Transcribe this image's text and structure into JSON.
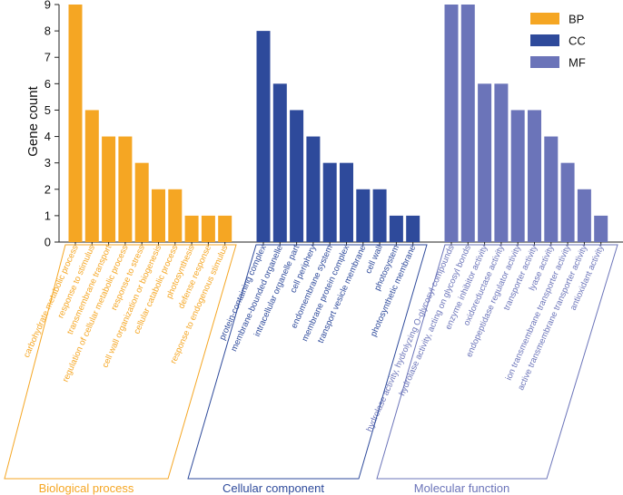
{
  "chart_data": {
    "type": "bar",
    "ylabel": "Gene count",
    "ylim": [
      0,
      9
    ],
    "yticks": [
      "0",
      "1",
      "2",
      "3",
      "4",
      "5",
      "6",
      "7",
      "8",
      "9"
    ],
    "legend": {
      "placement": "top-right",
      "entries": [
        {
          "name": "BP",
          "color": "#F5A623"
        },
        {
          "name": "CC",
          "color": "#2E4A9B"
        },
        {
          "name": "MF",
          "color": "#6B74B9"
        }
      ]
    },
    "groups": [
      {
        "name": "BP",
        "label": "Biological process",
        "color": "#F5A623",
        "categories": [
          "carbohydrate metabolic process",
          "response to stimulus",
          "transmembrane transport",
          "regulation of cellular metabolic process",
          "response to stress",
          "cell wall organization or biogenesis",
          "cellular catabolic process",
          "photosynthesis",
          "defense response",
          "response to endogenous stimulus"
        ],
        "values": [
          9,
          5,
          4,
          4,
          3,
          2,
          2,
          1,
          1,
          1
        ]
      },
      {
        "name": "CC",
        "label": "Cellular component",
        "color": "#2E4A9B",
        "categories": [
          "protein-containing complex",
          "membrane-bounded organelle",
          "intracellular organelle part",
          "cell periphery",
          "endomembrane system",
          "membrane protein complex",
          "transport vesicle membrane",
          "cell wall",
          "photosystem",
          "photosynthetic membrane"
        ],
        "values": [
          8,
          6,
          5,
          4,
          3,
          3,
          2,
          2,
          1,
          1
        ]
      },
      {
        "name": "MF",
        "label": "Molecular function",
        "color": "#6B74B9",
        "categories": [
          "hydrolase activity, hydrolyzing O-glycosyl compounds",
          "hydrolase activity, acting on glycosyl bonds",
          "enzyme inhibitor activity",
          "oxidoreductase activity",
          "endopeptidase regulator activity",
          "transporter activity",
          "lyase activity",
          "ion transmembrane transporter activity",
          "active transmembrane transporter activity",
          "antioxidant activity"
        ],
        "values": [
          9,
          9,
          6,
          6,
          5,
          5,
          4,
          3,
          2,
          1
        ]
      }
    ]
  }
}
